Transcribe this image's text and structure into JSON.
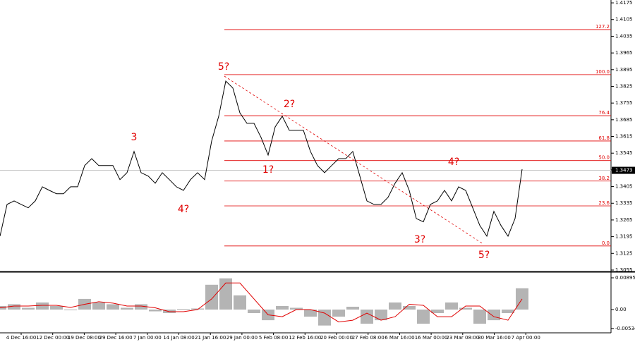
{
  "chart_data": [
    {
      "type": "line",
      "name": "price",
      "values": [
        1.3197,
        1.333,
        1.3345,
        1.333,
        1.3316,
        1.3345,
        1.3404,
        1.3389,
        1.3375,
        1.3375,
        1.3404,
        1.3404,
        1.3493,
        1.3522,
        1.3493,
        1.3493,
        1.3493,
        1.3434,
        1.3463,
        1.3552,
        1.3463,
        1.3449,
        1.3419,
        1.3463,
        1.3434,
        1.3404,
        1.3389,
        1.3434,
        1.3463,
        1.3434,
        1.3596,
        1.37,
        1.3847,
        1.3818,
        1.3714,
        1.367,
        1.367,
        1.3611,
        1.3537,
        1.3655,
        1.37,
        1.3641,
        1.3641,
        1.3641,
        1.3552,
        1.3493,
        1.3463,
        1.3493,
        1.3522,
        1.3522,
        1.3552,
        1.3449,
        1.3345,
        1.333,
        1.333,
        1.336,
        1.3419,
        1.3463,
        1.3389,
        1.3271,
        1.3257,
        1.333,
        1.3345,
        1.3389,
        1.3345,
        1.3404,
        1.3389,
        1.3316,
        1.3242,
        1.3197,
        1.3301,
        1.3242,
        1.3197,
        1.3271,
        1.3478
      ],
      "color": "#000000",
      "ylim": [
        1.3049,
        1.4187
      ],
      "yticks": [
        1.4175,
        1.4105,
        1.4035,
        1.3965,
        1.3895,
        1.3825,
        1.3755,
        1.3685,
        1.3615,
        1.3545,
        1.3475,
        1.3405,
        1.3335,
        1.3265,
        1.3195,
        1.3125,
        1.3055
      ],
      "current_price": 1.3473,
      "fib_color": "#e00000",
      "fib_levels": [
        {
          "value": 1.4063,
          "label": "127.2"
        },
        {
          "value": 1.3874,
          "label": "100.0"
        },
        {
          "value": 1.3702,
          "label": "76.4"
        },
        {
          "value": 1.3596,
          "label": "61.8"
        },
        {
          "value": 1.3514,
          "label": "50.0"
        },
        {
          "value": 1.3428,
          "label": "38.2"
        },
        {
          "value": 1.3324,
          "label": "23.6"
        },
        {
          "value": 1.3156,
          "label": "0.0"
        }
      ],
      "annotations": [
        "5?",
        "3",
        "4?",
        "1?",
        "2?",
        "4?",
        "3?",
        "5?"
      ],
      "x_labels": [
        "4 Dec 16:00",
        "12 Dec 00:00",
        "19 Dec 08:00",
        "29 Dec 16:00",
        "7 Jan 00:00",
        "14 Jan 08:00",
        "21 Jan 16:00",
        "29 Jan 00:00",
        "5 Feb 08:00",
        "12 Feb 16:00",
        "20 Feb 00:00",
        "27 Feb 08:00",
        "6 Mar 16:00",
        "16 Mar 00:00",
        "23 Mar 08:00",
        "30 Mar 16:00",
        "7 Apr 00:00"
      ]
    },
    {
      "type": "bar",
      "name": "MACD",
      "series": [
        {
          "name": "histogram",
          "color": "#b4b4b4",
          "values": [
            0.001,
            0.0015,
            0.0005,
            0.002,
            0.001,
            -0.0002,
            0.003,
            0.002,
            0.0015,
            0.0005,
            0.0015,
            -0.0005,
            -0.001,
            0.0002,
            0.0003,
            0.007,
            0.0088,
            0.004,
            -0.001,
            -0.003,
            0.001,
            0.0005,
            -0.002,
            -0.0045,
            -0.002,
            0.0008,
            -0.004,
            -0.003,
            0.002,
            0.001,
            -0.004,
            -0.001,
            0.002,
            0.0005,
            -0.004,
            -0.003,
            -0.001,
            0.006
          ]
        },
        {
          "name": "signal",
          "color": "#e00000",
          "values": [
            0.0005,
            0.001,
            0.001,
            0.0012,
            0.0012,
            0.0006,
            0.0015,
            0.0022,
            0.0018,
            0.001,
            0.001,
            0.0005,
            -0.0006,
            -0.0006,
            0,
            0.003,
            0.0075,
            0.0075,
            0.003,
            -0.0015,
            -0.002,
            0,
            0,
            -0.001,
            -0.0035,
            -0.003,
            -0.001,
            -0.003,
            -0.002,
            0.0015,
            0.0012,
            -0.002,
            -0.002,
            0.001,
            0.001,
            -0.002,
            -0.003,
            0.003
          ]
        }
      ],
      "ylim": [
        -0.00656,
        0.01014
      ],
      "yticks": [
        0.00895,
        {
          "value": 0,
          "label": "0.00"
        },
        -0.00534
      ]
    }
  ]
}
